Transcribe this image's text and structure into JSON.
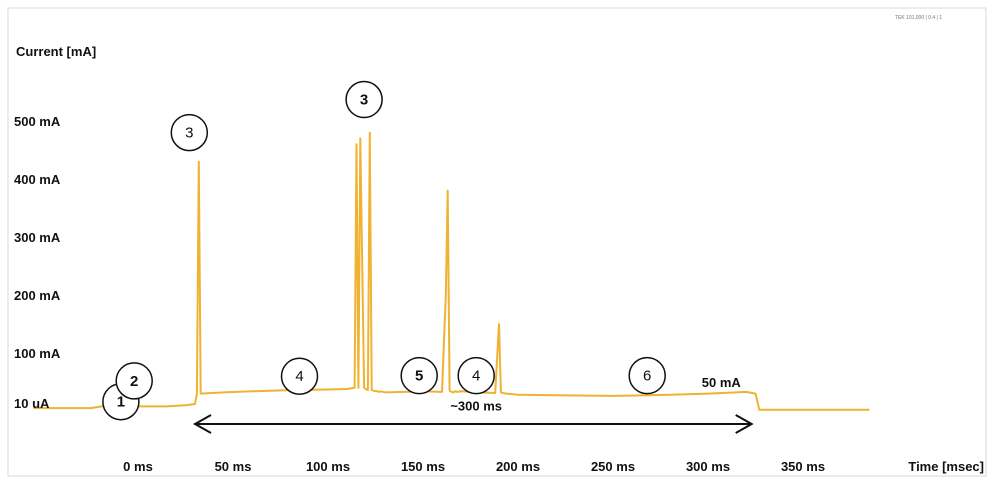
{
  "chart_data": {
    "type": "line",
    "title": "",
    "ylabel": "Current [mA]",
    "xlabel": "Time [msec]",
    "x_tick_labels": [
      "0 ms",
      "50 ms",
      "100 ms",
      "150 ms",
      "200 ms",
      "250 ms",
      "300 ms",
      "350 ms"
    ],
    "x_tick_values": [
      0,
      50,
      100,
      150,
      200,
      250,
      300,
      350
    ],
    "y_tick_labels": [
      "10 uA",
      "100 mA",
      "200 mA",
      "300 mA",
      "400 mA",
      "500 mA"
    ],
    "y_tick_values": [
      0.01,
      100,
      200,
      300,
      400,
      500
    ],
    "xlim": [
      -55,
      385
    ],
    "ylim": [
      -15,
      560
    ],
    "grid": false,
    "series": [
      {
        "color": "#f0b232",
        "x": [
          -55,
          -25,
          -15,
          -12,
          -9,
          -5,
          0,
          15,
          25,
          30,
          31,
          32,
          33,
          45,
          60,
          80,
          100,
          110,
          114,
          115,
          116,
          117,
          119,
          120,
          121,
          122,
          123,
          124,
          126,
          127,
          128,
          130,
          140,
          150,
          160,
          162,
          163,
          164,
          165,
          166,
          167,
          168,
          170,
          180,
          188,
          190,
          191,
          192,
          194,
          200,
          220,
          250,
          280,
          300,
          315,
          320,
          325,
          327,
          340,
          385
        ],
        "y": [
          5,
          5,
          10,
          25,
          15,
          10,
          8,
          8,
          10,
          12,
          30,
          430,
          30,
          32,
          34,
          36,
          37,
          38,
          40,
          460,
          40,
          470,
          40,
          38,
          36,
          480,
          36,
          35,
          34,
          33,
          34,
          32,
          33,
          34,
          33,
          200,
          380,
          35,
          33,
          32,
          34,
          33,
          34,
          32,
          31,
          150,
          32,
          31,
          30,
          28,
          27,
          26,
          28,
          30,
          32,
          33,
          30,
          2,
          2,
          2
        ]
      }
    ],
    "annotations": [
      {
        "text": "1",
        "x": -9,
        "y": 16
      },
      {
        "text": "2",
        "x": -2,
        "y": 52
      },
      {
        "text": "3",
        "x": 27,
        "y": 480
      },
      {
        "text": "3",
        "x": 119,
        "y": 537
      },
      {
        "text": "4",
        "x": 85,
        "y": 60
      },
      {
        "text": "5",
        "x": 148,
        "y": 61
      },
      {
        "text": "4",
        "x": 178,
        "y": 61
      },
      {
        "text": "6",
        "x": 268,
        "y": 61
      },
      {
        "text": "50 mA",
        "x": 307,
        "y": 48
      },
      {
        "text": "~300 ms",
        "x": 178,
        "y": 8
      }
    ],
    "interval_arrow": {
      "from": 30,
      "to": 323,
      "label": "~300 ms"
    }
  },
  "corner_stamp": "TEK 101,000 | 0.4 | 1"
}
